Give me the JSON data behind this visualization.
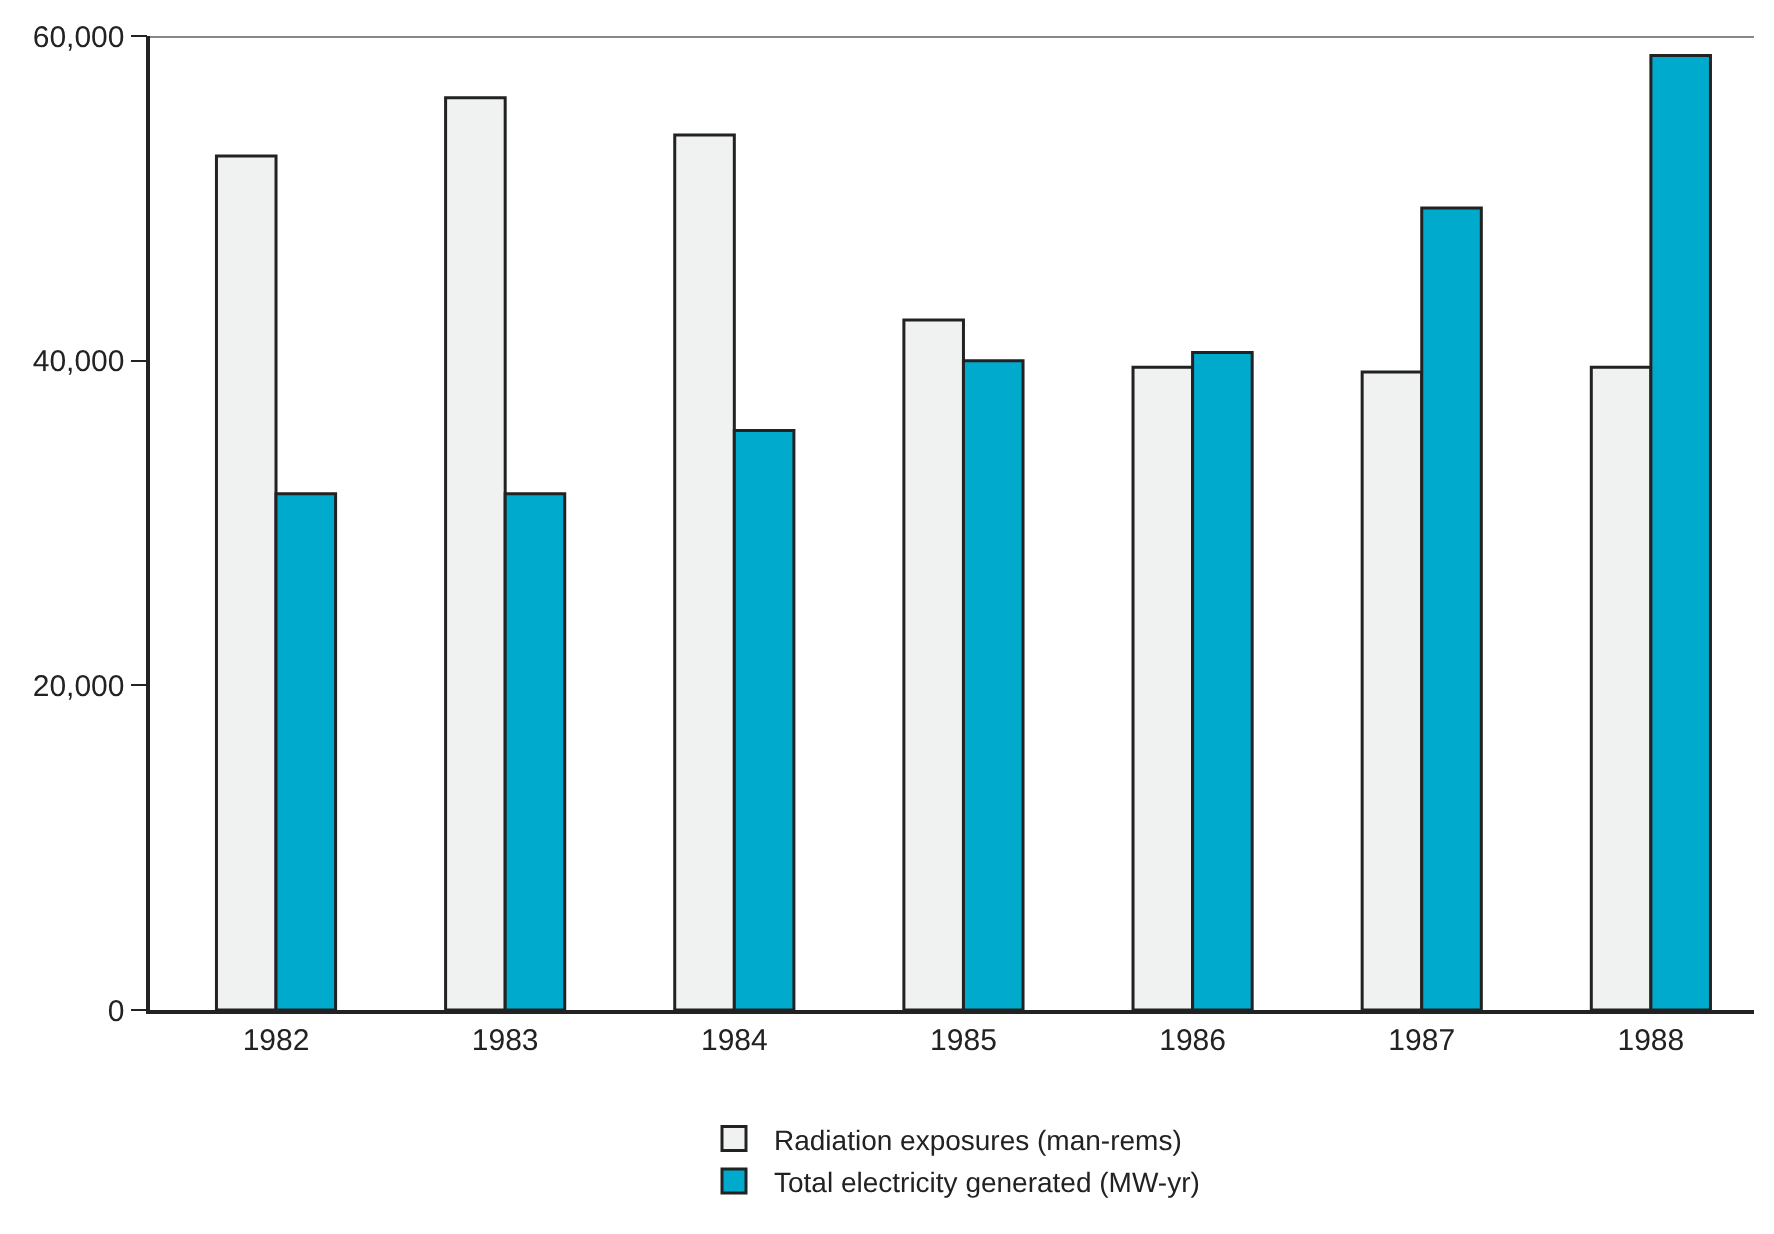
{
  "chart_data": {
    "type": "bar",
    "categories": [
      "1982",
      "1983",
      "1984",
      "1985",
      "1986",
      "1987",
      "1988"
    ],
    "series": [
      {
        "name": "Radiation exposures (man-rems)",
        "color": "#eff2f1",
        "values": [
          52600,
          56200,
          53900,
          42500,
          39600,
          39300,
          39600
        ]
      },
      {
        "name": "Total electricity generated (MW-yr)",
        "color": "#00aacc",
        "values": [
          31800,
          31800,
          35700,
          40000,
          40500,
          49400,
          58800
        ]
      }
    ],
    "ylim": [
      0,
      60000
    ],
    "yticks": [
      0,
      {
        "value": 20000,
        "label": "20,000"
      },
      {
        "value": 40000,
        "label": "40,000"
      },
      {
        "value": 60000,
        "label": "60,000"
      }
    ],
    "legend": "bottom"
  }
}
